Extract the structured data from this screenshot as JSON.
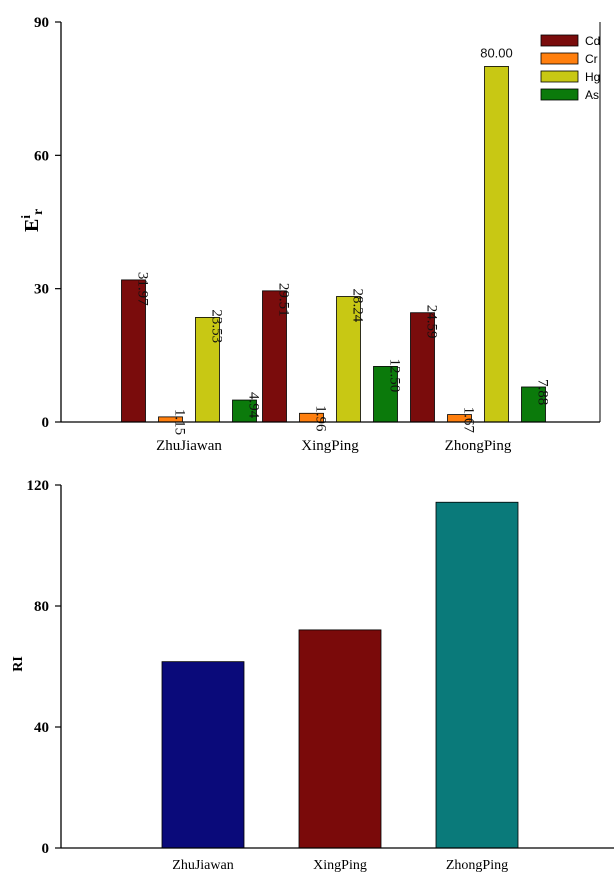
{
  "chart_data": [
    {
      "type": "bar",
      "categories": [
        "ZhuJiawan",
        "XingPing",
        "ZhongPing"
      ],
      "ylabel": "E",
      "ylabel_superscript": "i",
      "ylabel_subscript": "r",
      "ylim": [
        0,
        90
      ],
      "yticks": [
        0,
        30,
        60,
        90
      ],
      "legend_position": "top-right",
      "series": [
        {
          "name": "Cd",
          "color": "#7a0c0c",
          "values": [
            31.97,
            29.51,
            24.59
          ],
          "labels": [
            "31.97",
            "29.51",
            "24.59"
          ]
        },
        {
          "name": "Cr",
          "color": "#ff7f0e",
          "values": [
            1.15,
            1.96,
            1.67
          ],
          "labels": [
            "1.15",
            "1.96",
            "1.67"
          ]
        },
        {
          "name": "Hg",
          "color": "#c8c814",
          "values": [
            23.53,
            28.24,
            80.0
          ],
          "labels": [
            "23.53",
            "28.24",
            "80.00"
          ]
        },
        {
          "name": "As",
          "color": "#0b7a0b",
          "values": [
            4.94,
            12.5,
            7.88
          ],
          "labels": [
            "4.94",
            "12.50",
            "7.88"
          ]
        }
      ]
    },
    {
      "type": "bar",
      "categories": [
        "ZhuJiawan",
        "XingPing",
        "ZhongPing"
      ],
      "ylabel": "RI",
      "ylim": [
        0,
        120
      ],
      "yticks": [
        0,
        40,
        80,
        120
      ],
      "values": [
        61.6,
        72.1,
        114.3
      ],
      "colors": [
        "#0a0a7a",
        "#7a0a0a",
        "#0a7a7a"
      ]
    }
  ]
}
